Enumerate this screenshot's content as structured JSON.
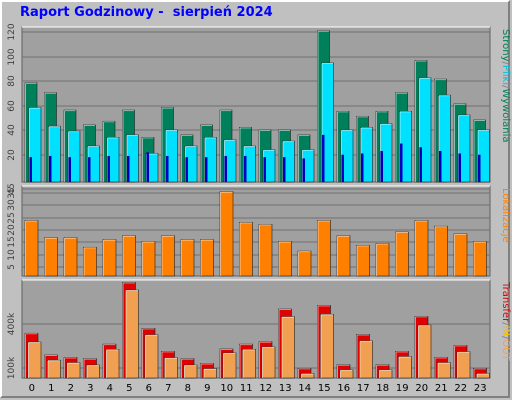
{
  "title": "Raport Godzinowy -  sierpień 2024",
  "colors": {
    "strony": "#00805a",
    "pliki": "#00e0ff",
    "wywolania": "#0000c0",
    "lokalizacje": "#ff8000",
    "transfer_in": "#e00000",
    "transfer_out": "#f0a050",
    "plot_bg": "#a0a0a0"
  },
  "chart_data": [
    {
      "type": "bar",
      "name": "hits",
      "categories": [
        "0",
        "1",
        "2",
        "3",
        "4",
        "5",
        "6",
        "7",
        "8",
        "9",
        "10",
        "11",
        "12",
        "13",
        "14",
        "15",
        "16",
        "17",
        "18",
        "19",
        "20",
        "21",
        "22",
        "23"
      ],
      "y_ticks": [
        "20",
        "40",
        "60",
        "80",
        "100",
        "120"
      ],
      "ylim": [
        0,
        125
      ],
      "grid": true,
      "series": [
        {
          "name": "Strony",
          "values": [
            80,
            72,
            58,
            46,
            49,
            58,
            36,
            60,
            38,
            46,
            58,
            44,
            42,
            42,
            38,
            122,
            57,
            53,
            57,
            72,
            98,
            83,
            63,
            50
          ]
        },
        {
          "name": "Pliki",
          "values": [
            60,
            45,
            41,
            29,
            36,
            38,
            23,
            42,
            29,
            36,
            34,
            29,
            26,
            33,
            26,
            96,
            42,
            44,
            47,
            57,
            84,
            70,
            54,
            42
          ]
        },
        {
          "name": "Wywolania",
          "values": [
            20,
            21,
            20,
            20,
            21,
            21,
            24,
            21,
            20,
            20,
            21,
            21,
            20,
            20,
            19,
            38,
            22,
            23,
            25,
            31,
            28,
            25,
            23,
            22
          ]
        }
      ],
      "side_labels": [
        {
          "text": "Strony",
          "color": "#00805a"
        },
        {
          "text": "/",
          "color": "#808080"
        },
        {
          "text": "Pliki",
          "color": "#00c0e0"
        },
        {
          "text": "/",
          "color": "#808080"
        },
        {
          "text": "Wywolania",
          "color": "#00805a"
        }
      ]
    },
    {
      "type": "bar",
      "name": "locations",
      "y_ticks": [
        "5",
        "10",
        "15",
        "20",
        "25",
        "30",
        "35",
        "45"
      ],
      "ylim": [
        0,
        47
      ],
      "grid": true,
      "series": [
        {
          "name": "Lokalizacje",
          "values": [
            29,
            20,
            20,
            15,
            19,
            21,
            18,
            21,
            19,
            19,
            44,
            28,
            27,
            18,
            13,
            29,
            21,
            16,
            17,
            23,
            29,
            26,
            22,
            18
          ]
        }
      ],
      "side_labels": [
        {
          "text": "Lokalizacje",
          "color": "#ff8000"
        }
      ]
    },
    {
      "type": "bar",
      "name": "transfer",
      "y_ticks": [
        "100k",
        "400k"
      ],
      "ylim": [
        0,
        810
      ],
      "grid": true,
      "series": [
        {
          "name": "IN",
          "values": [
            370,
            190,
            170,
            160,
            280,
            790,
            410,
            220,
            160,
            120,
            240,
            280,
            300,
            570,
            80,
            600,
            110,
            360,
            110,
            220,
            510,
            170,
            270,
            80
          ]
        },
        {
          "name": "OUT",
          "values": [
            330,
            180,
            160,
            140,
            270,
            760,
            390,
            200,
            140,
            110,
            240,
            270,
            290,
            540,
            70,
            560,
            100,
            340,
            100,
            210,
            470,
            160,
            250,
            70
          ]
        }
      ],
      "side_labels": [
        {
          "text": "Transfer",
          "color": "#e00000"
        },
        {
          "text": "/",
          "color": "#808080"
        },
        {
          "text": "IN",
          "color": "#f0c000"
        },
        {
          "text": "/",
          "color": "#808080"
        },
        {
          "text": "OUT",
          "color": "#f0a050"
        }
      ]
    }
  ]
}
